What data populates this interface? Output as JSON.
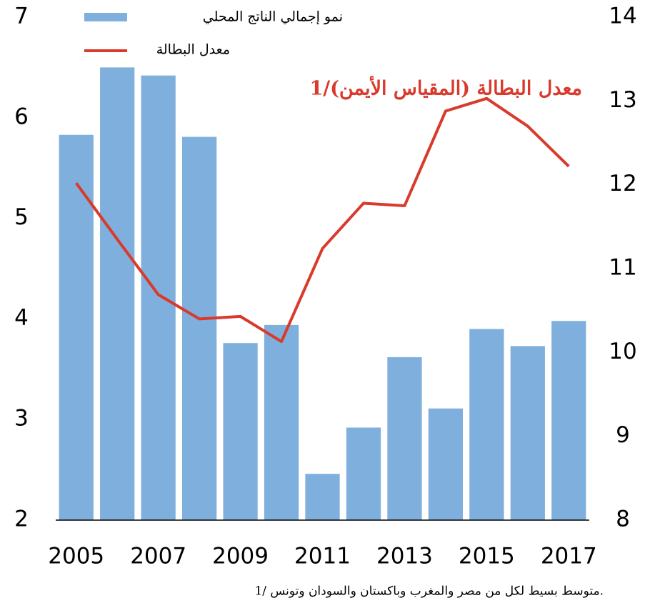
{
  "chart_data": {
    "type": "bar_line",
    "categories": [
      2005,
      null,
      2007,
      null,
      2009,
      null,
      2011,
      null,
      2013,
      null,
      2015,
      null,
      2017
    ],
    "series": [
      {
        "name": "نمو إجمالي الناتج المحلي",
        "type": "bar",
        "color": "#7fb0dd",
        "values": [
          5.83,
          6.5,
          6.42,
          5.81,
          3.76,
          3.94,
          2.46,
          2.92,
          3.62,
          3.11,
          3.9,
          3.73,
          3.98
        ]
      },
      {
        "name": "معدل البطالة",
        "type": "line",
        "axis": "y2",
        "color": "#d93a2b",
        "values": [
          12.02,
          11.35,
          10.69,
          10.4,
          10.43,
          10.13,
          11.24,
          11.78,
          11.75,
          12.88,
          13.03,
          12.7,
          12.22
        ]
      }
    ],
    "ylim": [
      2,
      7
    ],
    "yticks": [
      2,
      3,
      4,
      5,
      6,
      7
    ],
    "y2lim": [
      8,
      14
    ],
    "y2ticks": [
      8,
      9,
      10,
      11,
      12,
      13,
      14
    ],
    "annotation": "معدل البطالة (المقياس الأيمن)/1",
    "footnote": "1/ متوسط بسيط لكل من مصر والمغرب وباكستان والسودان وتونس."
  }
}
